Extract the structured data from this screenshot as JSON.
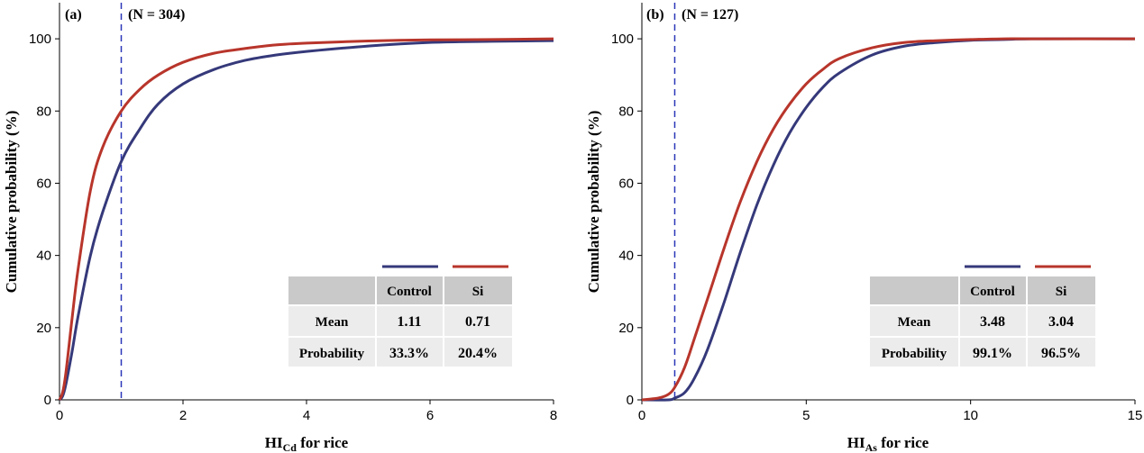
{
  "colors": {
    "control": "#35397a",
    "si": "#b8352b",
    "threshold": "#2a36b8",
    "table_header": "#c9c9c9",
    "table_body": "#ececec"
  },
  "chart_data": [
    {
      "type": "line",
      "panel_label": "(a)",
      "annotation": "(N = 304)",
      "ylabel": "Cumulative probability (%)",
      "xlabel": {
        "main": "HI",
        "sub": "Cd",
        "rest": " for rice"
      },
      "xlim": [
        0,
        8
      ],
      "ylim": [
        0,
        110
      ],
      "xticks": [
        0,
        2,
        4,
        6,
        8
      ],
      "xtick_labels": [
        "0",
        "2",
        "4",
        "6",
        "8"
      ],
      "yticks": [
        0,
        20,
        40,
        60,
        80,
        100
      ],
      "ytick_labels": [
        "0",
        "20",
        "40",
        "60",
        "80",
        "100"
      ],
      "threshold_x": 1,
      "series": [
        {
          "name": "Control",
          "color": "#35397a",
          "x": [
            0,
            0.05,
            0.1,
            0.2,
            0.3,
            0.5,
            0.7,
            1.0,
            1.3,
            1.6,
            2.0,
            2.5,
            3.0,
            3.5,
            4.0,
            5.0,
            6.0,
            7.0,
            8.0
          ],
          "y": [
            0,
            1,
            4,
            13,
            23,
            40,
            52,
            66,
            75,
            82,
            87.5,
            91.5,
            94,
            95.5,
            96.5,
            98,
            99,
            99.3,
            99.5
          ]
        },
        {
          "name": "Si",
          "color": "#b8352b",
          "x": [
            0,
            0.05,
            0.1,
            0.2,
            0.3,
            0.5,
            0.7,
            1.0,
            1.3,
            1.6,
            2.0,
            2.5,
            3.0,
            3.5,
            4.0,
            5.0,
            6.0,
            7.0,
            8.0
          ],
          "y": [
            0,
            2,
            7,
            22,
            36,
            58,
            70,
            80,
            86,
            90,
            93.5,
            96,
            97.3,
            98.3,
            98.8,
            99.4,
            99.7,
            99.8,
            100
          ]
        }
      ],
      "table": {
        "headers": [
          "",
          "Control",
          "Si"
        ],
        "rows": [
          {
            "label": "Mean",
            "control": "1.11",
            "si": "0.71"
          },
          {
            "label": "Probability",
            "control": "33.3%",
            "si": "20.4%"
          }
        ]
      }
    },
    {
      "type": "line",
      "panel_label": "(b)",
      "annotation": "(N = 127)",
      "ylabel": "Cumulative probability (%)",
      "xlabel": {
        "main": "HI",
        "sub": "As",
        "rest": " for rice"
      },
      "xlim": [
        0,
        15
      ],
      "ylim": [
        0,
        110
      ],
      "xticks": [
        0,
        5,
        10,
        15
      ],
      "xtick_labels": [
        "0",
        "5",
        "10",
        "15"
      ],
      "yticks": [
        0,
        20,
        40,
        60,
        80,
        100
      ],
      "ytick_labels": [
        "0",
        "20",
        "40",
        "60",
        "80",
        "100"
      ],
      "threshold_x": 1,
      "series": [
        {
          "name": "Control",
          "color": "#35397a",
          "x": [
            0,
            0.8,
            1.0,
            1.3,
            1.6,
            2.0,
            2.5,
            3.0,
            3.5,
            4.0,
            4.5,
            5.0,
            5.5,
            6.0,
            7.0,
            8.0,
            9.0,
            10.0,
            11.0,
            12.0,
            15.0
          ],
          "y": [
            0,
            0,
            0.5,
            2,
            6,
            14,
            27,
            41,
            54,
            65,
            74,
            81,
            86.5,
            90.5,
            95.5,
            98,
            99,
            99.6,
            99.8,
            100,
            100
          ]
        },
        {
          "name": "Si",
          "color": "#b8352b",
          "x": [
            0,
            0.5,
            0.8,
            1.0,
            1.3,
            1.6,
            2.0,
            2.5,
            3.0,
            3.5,
            4.0,
            4.5,
            5.0,
            5.5,
            6.0,
            7.0,
            8.0,
            9.0,
            10.0,
            11.0,
            12.0,
            15.0
          ],
          "y": [
            0,
            0.5,
            1.5,
            3.5,
            9,
            17,
            28,
            42,
            55,
            66,
            75,
            82,
            87.5,
            91.5,
            94.5,
            97.5,
            99,
            99.5,
            99.8,
            100,
            100,
            100
          ]
        }
      ],
      "table": {
        "headers": [
          "",
          "Control",
          "Si"
        ],
        "rows": [
          {
            "label": "Mean",
            "control": "3.48",
            "si": "3.04"
          },
          {
            "label": "Probability",
            "control": "99.1%",
            "si": "96.5%"
          }
        ]
      }
    }
  ]
}
